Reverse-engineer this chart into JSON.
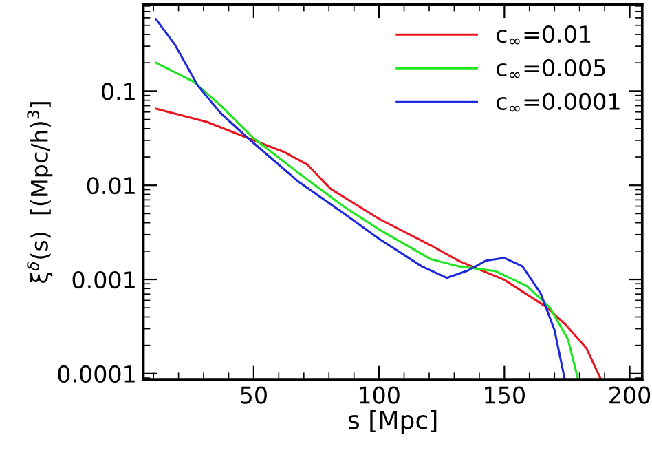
{
  "chart_data": {
    "type": "line",
    "xlabel": "s [Mpc]",
    "ylabel": "ξ$^{δ}$(s)  [(Mpc/h)$^{3}$]",
    "log": "y",
    "xlim": [
      6,
      205
    ],
    "ylim": [
      8.7e-05,
      0.83
    ],
    "xticks": [
      50,
      100,
      150,
      200
    ],
    "yticks": [
      0.0001,
      0.001,
      0.01,
      0.1
    ],
    "legend": "top right",
    "grid": false,
    "series": [
      {
        "name": "c$_{∞}$=0.01",
        "color": "#e8141e",
        "x": [
          11,
          31.4,
          50,
          62.4,
          71.5,
          80.6,
          100,
          120.7,
          131.7,
          150,
          166.3,
          174.5,
          182.7,
          188.5
        ],
        "values": [
          0.065,
          0.047,
          0.03,
          0.0224,
          0.0165,
          0.0092,
          0.0044,
          0.0023,
          0.00158,
          0.00099,
          0.00052,
          0.00033,
          0.000187,
          8.7e-05
        ]
      },
      {
        "name": "c$_{∞}$=0.005",
        "color": "#1ee61e",
        "x": [
          11,
          26,
          36.9,
          50,
          67.9,
          86.1,
          100,
          120.7,
          131.7,
          146.2,
          159,
          168,
          175.4,
          179.4
        ],
        "values": [
          0.2,
          0.126,
          0.07,
          0.0315,
          0.0135,
          0.0059,
          0.0034,
          0.00164,
          0.00138,
          0.00123,
          0.00085,
          0.00051,
          0.00023,
          8.7e-05
        ]
      },
      {
        "name": "c$_{∞}$=0.0001",
        "color": "#1e28dc",
        "x": [
          11,
          18.6,
          27.8,
          36.9,
          50,
          67.9,
          86.1,
          100,
          117,
          127,
          135.3,
          142.6,
          150,
          157.2,
          164.5,
          170,
          174.1
        ],
        "values": [
          0.58,
          0.31,
          0.113,
          0.058,
          0.028,
          0.0109,
          0.005,
          0.0027,
          0.00138,
          0.00104,
          0.00124,
          0.00158,
          0.00169,
          0.00138,
          0.00071,
          0.00029,
          8.7e-05
        ]
      }
    ]
  }
}
